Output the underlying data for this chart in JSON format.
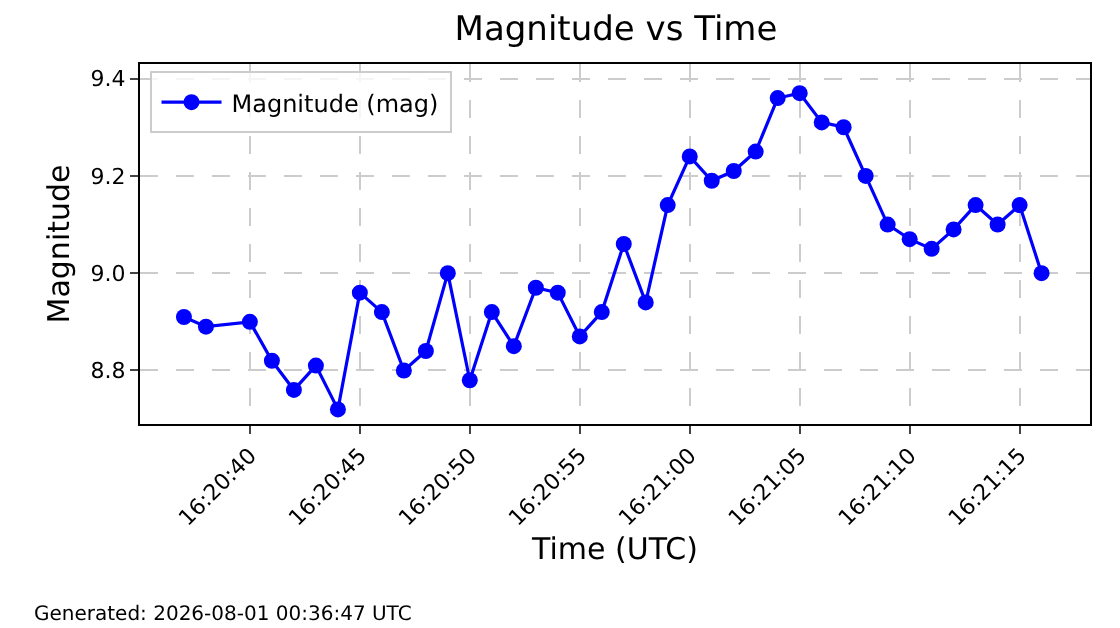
{
  "chart_data": {
    "type": "line",
    "title": "Magnitude vs Time",
    "xlabel": "Time (UTC)",
    "ylabel": "Magnitude",
    "annotations": [
      "Generated: 2026-08-01 00:36:47 UTC"
    ],
    "x": [
      16.343611,
      16.343889,
      16.344444,
      16.344722,
      16.345,
      16.345278,
      16.345556,
      16.345833,
      16.346111,
      16.346389,
      16.346667,
      16.346944,
      16.347222,
      16.3475,
      16.347778,
      16.348056,
      16.348333,
      16.348611,
      16.348889,
      16.349167,
      16.349444,
      16.349722,
      16.35,
      16.350278,
      16.350556,
      16.350833,
      16.351111,
      16.351389,
      16.351667,
      16.351944,
      16.352222,
      16.3525,
      16.352778,
      16.353056,
      16.353333,
      16.353611,
      16.353889,
      16.354167,
      16.354444
    ],
    "series": [
      {
        "name": "Magnitude (mag)",
        "color": "#0000ff",
        "values": [
          8.91,
          8.89,
          8.9,
          8.82,
          8.76,
          8.81,
          8.72,
          8.96,
          8.92,
          8.8,
          8.84,
          9.0,
          8.78,
          8.92,
          8.85,
          8.97,
          8.96,
          8.87,
          8.92,
          9.06,
          8.94,
          9.14,
          9.24,
          9.19,
          9.21,
          9.25,
          9.36,
          9.37,
          9.31,
          9.3,
          9.2,
          9.1,
          9.07,
          9.05,
          9.09,
          9.14,
          9.1,
          9.14,
          9.0
        ]
      }
    ],
    "xlim": [
      16.343056,
      16.355056
    ],
    "xticks": [
      {
        "value": 16.344444,
        "label": "16:20:40"
      },
      {
        "value": 16.345833,
        "label": "16:20:45"
      },
      {
        "value": 16.347222,
        "label": "16:20:50"
      },
      {
        "value": 16.348611,
        "label": "16:20:55"
      },
      {
        "value": 16.35,
        "label": "16:21:00"
      },
      {
        "value": 16.351389,
        "label": "16:21:05"
      },
      {
        "value": 16.352778,
        "label": "16:21:10"
      },
      {
        "value": 16.354167,
        "label": "16:21:15"
      }
    ],
    "ylim": [
      8.69,
      9.43
    ],
    "yticks": [
      {
        "value": 8.8,
        "label": "8.8"
      },
      {
        "value": 9.0,
        "label": "9.0"
      },
      {
        "value": 9.2,
        "label": "9.2"
      },
      {
        "value": 9.4,
        "label": "9.4"
      }
    ],
    "grid": true,
    "legend": "top left",
    "marker": "circle",
    "line_style": "solid"
  }
}
